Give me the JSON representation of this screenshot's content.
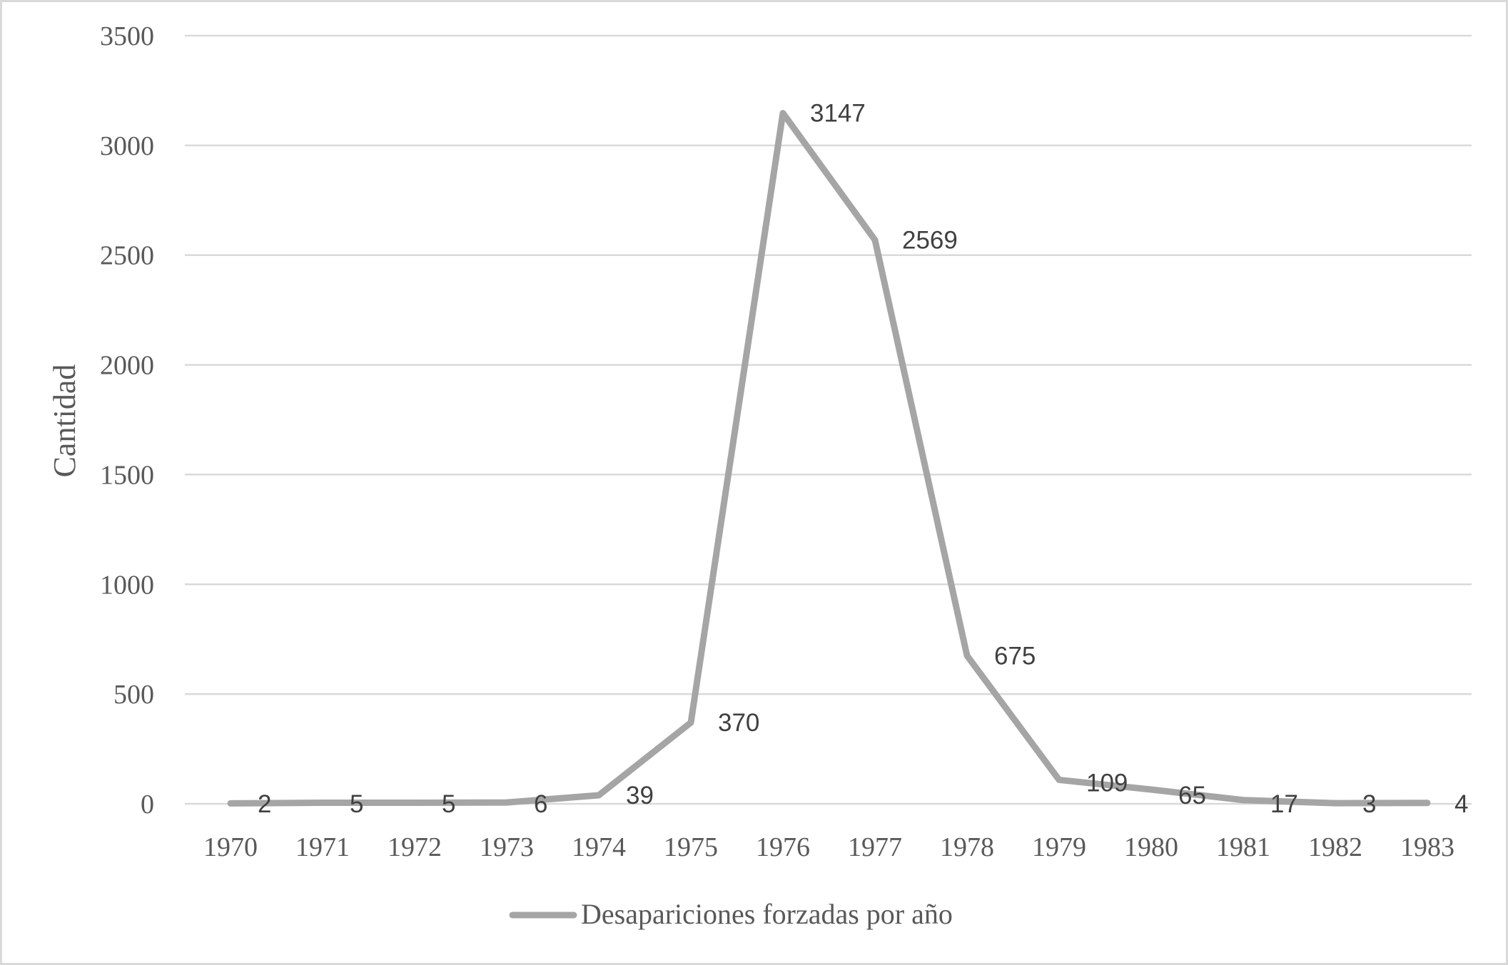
{
  "chart_data": {
    "type": "line",
    "title": "",
    "xlabel": "",
    "ylabel": "Cantidad",
    "ylim": [
      0,
      3500
    ],
    "yticks": [
      0,
      500,
      1000,
      1500,
      2000,
      2500,
      3000,
      3500
    ],
    "grid": true,
    "legend_position": "bottom",
    "categories": [
      "1970",
      "1971",
      "1972",
      "1973",
      "1974",
      "1975",
      "1976",
      "1977",
      "1978",
      "1979",
      "1980",
      "1981",
      "1982",
      "1983"
    ],
    "series": [
      {
        "name": "Desapariciones forzadas por año",
        "color": "#a5a5a5",
        "values": [
          2,
          5,
          5,
          6,
          39,
          370,
          3147,
          2569,
          675,
          109,
          65,
          17,
          3,
          4
        ],
        "data_labels": [
          "2",
          "5",
          "5",
          "6",
          "39",
          "370",
          "3147",
          "2569",
          "675",
          "109",
          "65",
          "17",
          "3",
          "4"
        ]
      }
    ]
  },
  "colors": {
    "line": "#a5a5a5",
    "grid": "#d9d9d9",
    "tick_text": "#595959",
    "data_label_text": "#404040",
    "border": "#d9d9d9"
  },
  "legend": {
    "label": "Desapariciones forzadas por año"
  }
}
